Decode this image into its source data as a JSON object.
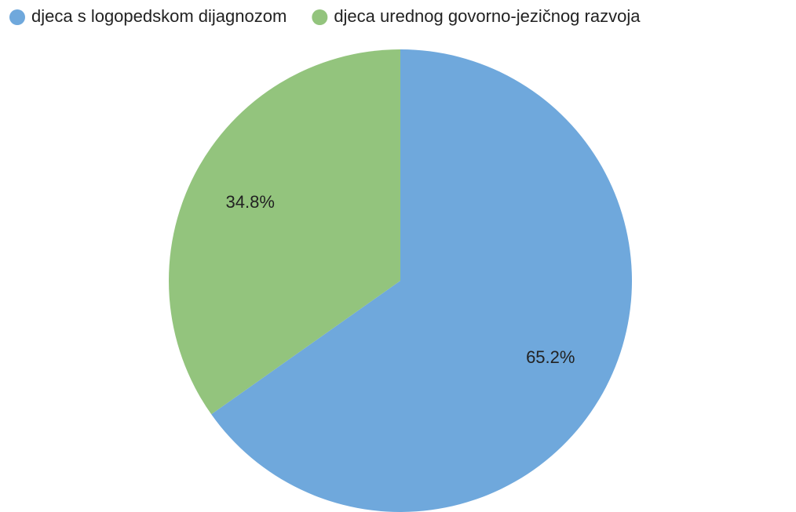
{
  "chart_data": {
    "type": "pie",
    "categories": [
      "djeca s logopedskom dijagnozom",
      "djeca urednog govorno-jezičnog razvoja"
    ],
    "values": [
      65.2,
      34.8
    ],
    "value_labels": [
      "65.2%",
      "34.8%"
    ],
    "colors": [
      "#6fa8dc",
      "#93c47d"
    ],
    "legend": "top"
  }
}
